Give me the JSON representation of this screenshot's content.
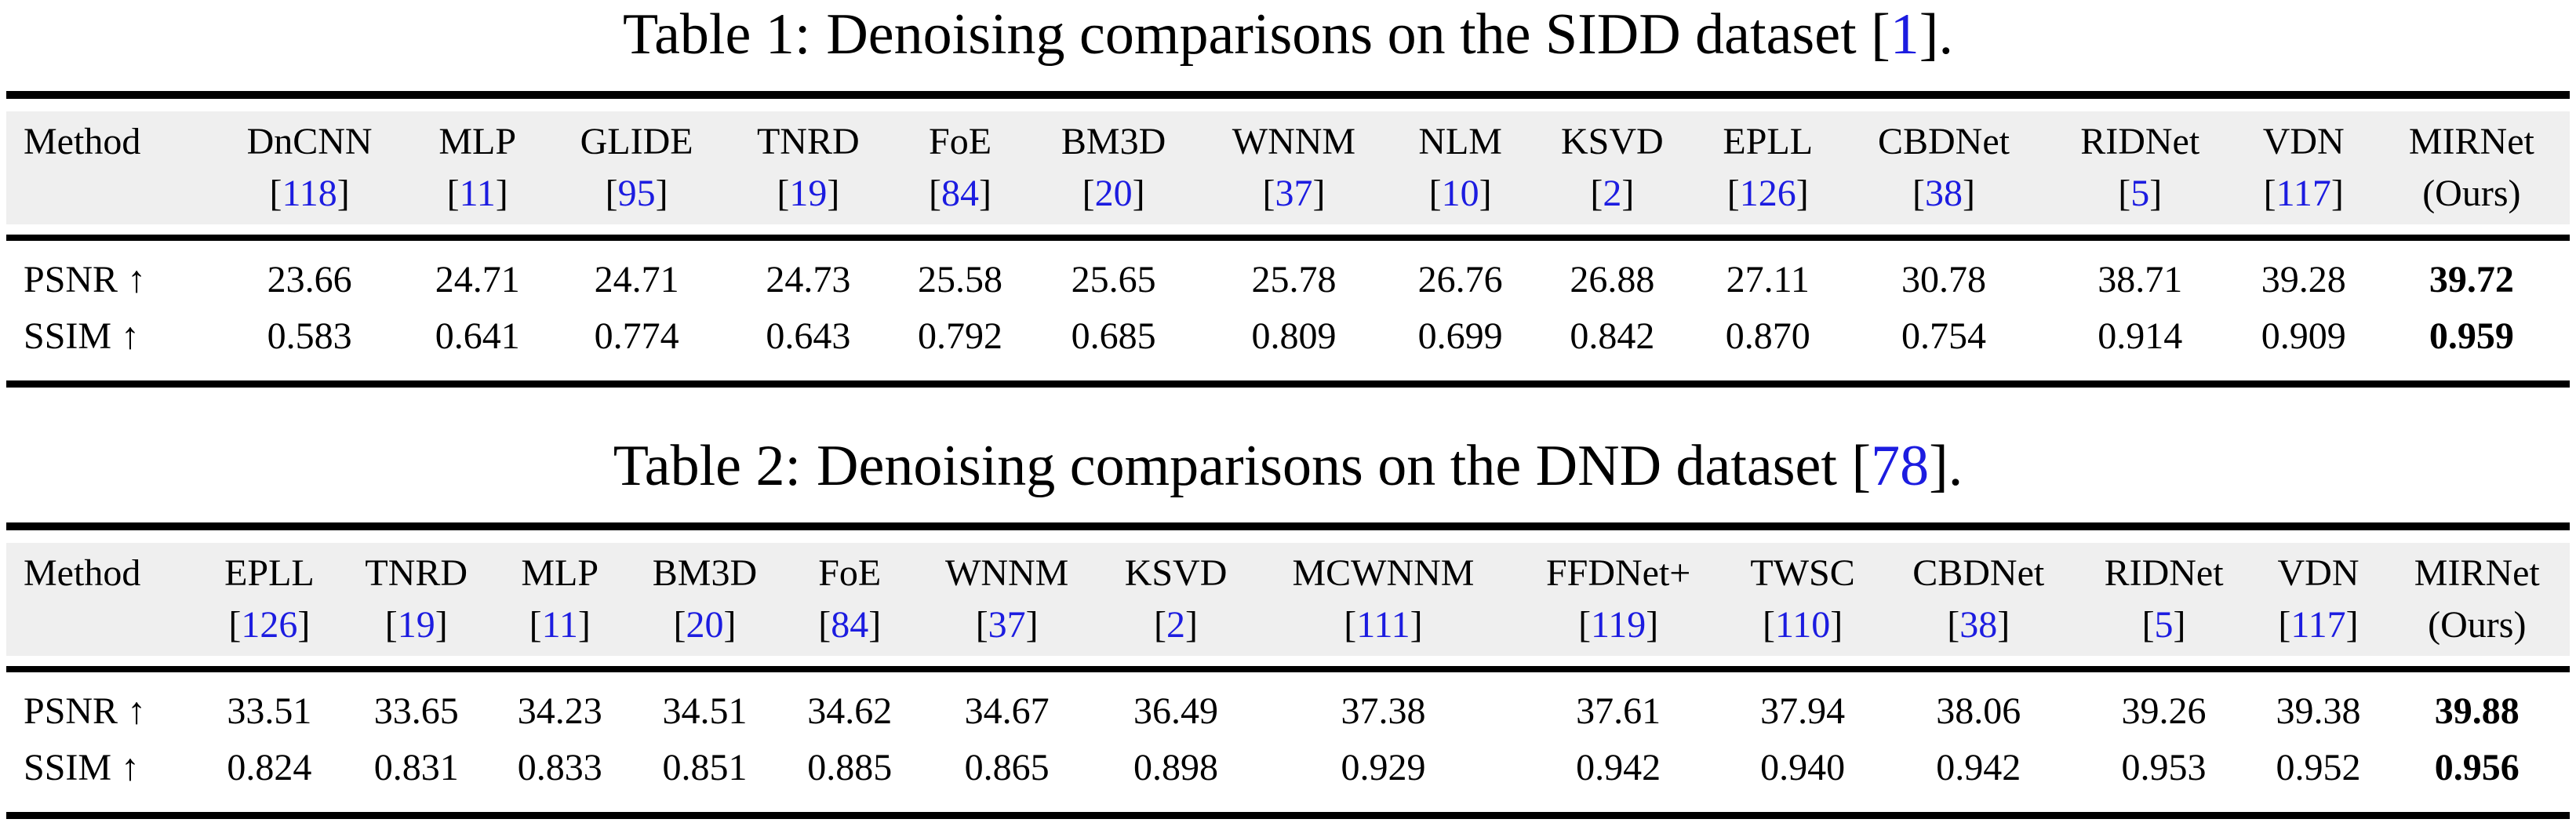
{
  "colors": {
    "background": "#ffffff",
    "text": "#000000",
    "citation_blue": "#1c1ce0",
    "header_band_gray": "#efefef",
    "rule_black": "#000000"
  },
  "tables": [
    {
      "caption": {
        "label": "Table 1:",
        "text": "Denoising comparisons on the SIDD dataset",
        "citation": "1",
        "period": "."
      },
      "method_label": "Method",
      "columns": [
        {
          "name": "DnCNN",
          "cite": "118"
        },
        {
          "name": "MLP",
          "cite": "11"
        },
        {
          "name": "GLIDE",
          "cite": "95"
        },
        {
          "name": "TNRD",
          "cite": "19"
        },
        {
          "name": "FoE",
          "cite": "84"
        },
        {
          "name": "BM3D",
          "cite": "20"
        },
        {
          "name": "WNNM",
          "cite": "37"
        },
        {
          "name": "NLM",
          "cite": "10"
        },
        {
          "name": "KSVD",
          "cite": "2"
        },
        {
          "name": "EPLL",
          "cite": "126"
        },
        {
          "name": "CBDNet",
          "cite": "38"
        },
        {
          "name": "RIDNet",
          "cite": "5"
        },
        {
          "name": "VDN",
          "cite": "117"
        },
        {
          "name": "MIRNet",
          "note": "(Ours)"
        }
      ],
      "rows": [
        {
          "label": "PSNR ↑",
          "values": [
            "23.66",
            "24.71",
            "24.71",
            "24.73",
            "25.58",
            "25.65",
            "25.78",
            "26.76",
            "26.88",
            "27.11",
            "30.78",
            "38.71",
            "39.28",
            "39.72"
          ]
        },
        {
          "label": "SSIM ↑",
          "values": [
            "0.583",
            "0.641",
            "0.774",
            "0.643",
            "0.792",
            "0.685",
            "0.809",
            "0.699",
            "0.842",
            "0.870",
            "0.754",
            "0.914",
            "0.909",
            "0.959"
          ]
        }
      ]
    },
    {
      "caption": {
        "label": "Table 2:",
        "text": "Denoising comparisons on the DND dataset",
        "citation": "78",
        "period": "."
      },
      "method_label": "Method",
      "columns": [
        {
          "name": "EPLL",
          "cite": "126"
        },
        {
          "name": "TNRD",
          "cite": "19"
        },
        {
          "name": "MLP",
          "cite": "11"
        },
        {
          "name": "BM3D",
          "cite": "20"
        },
        {
          "name": "FoE",
          "cite": "84"
        },
        {
          "name": "WNNM",
          "cite": "37"
        },
        {
          "name": "KSVD",
          "cite": "2"
        },
        {
          "name": "MCWNNM",
          "cite": "111"
        },
        {
          "name": "FFDNet+",
          "cite": "119"
        },
        {
          "name": "TWSC",
          "cite": "110"
        },
        {
          "name": "CBDNet",
          "cite": "38"
        },
        {
          "name": "RIDNet",
          "cite": "5"
        },
        {
          "name": "VDN",
          "cite": "117"
        },
        {
          "name": "MIRNet",
          "note": "(Ours)"
        }
      ],
      "rows": [
        {
          "label": "PSNR ↑",
          "values": [
            "33.51",
            "33.65",
            "34.23",
            "34.51",
            "34.62",
            "34.67",
            "36.49",
            "37.38",
            "37.61",
            "37.94",
            "38.06",
            "39.26",
            "39.38",
            "39.88"
          ]
        },
        {
          "label": "SSIM ↑",
          "values": [
            "0.824",
            "0.831",
            "0.833",
            "0.851",
            "0.885",
            "0.865",
            "0.898",
            "0.929",
            "0.942",
            "0.940",
            "0.942",
            "0.953",
            "0.952",
            "0.956"
          ]
        }
      ]
    }
  ]
}
